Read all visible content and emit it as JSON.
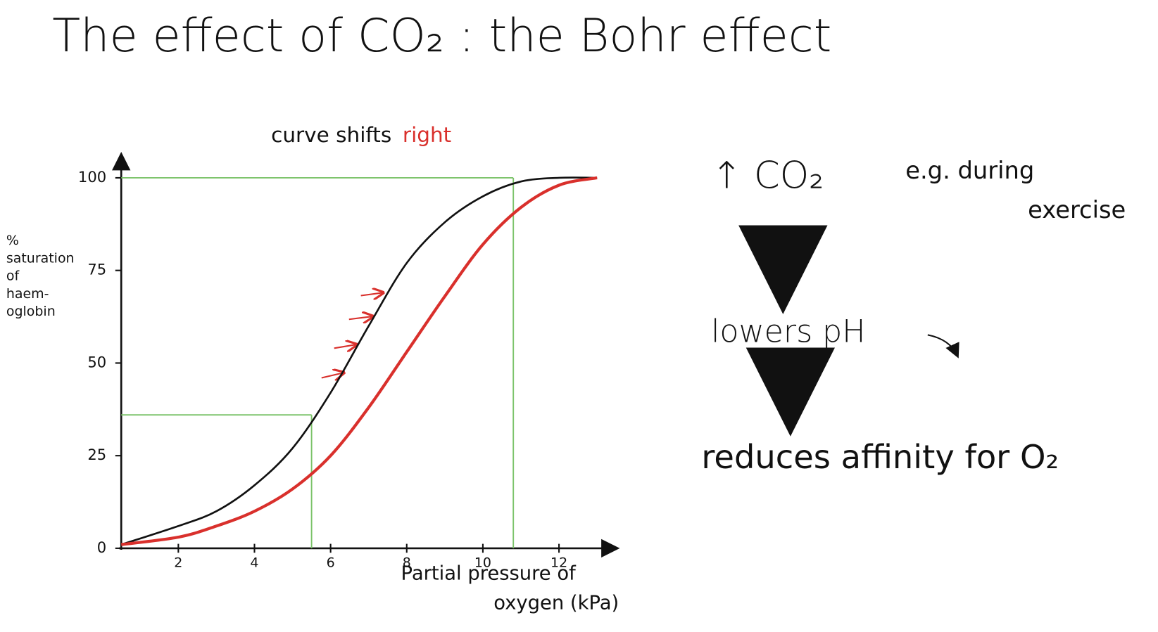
{
  "chart_data": {
    "type": "line",
    "title": "The effect of CO₂ : the Bohr effect",
    "subtitle": "curve shifts",
    "subtitle_highlight": "right",
    "y_label": [
      "%",
      "saturation",
      "of",
      "haem-",
      "oglobin"
    ],
    "x_label": [
      "Partial pressure of",
      "oxygen (kPa)"
    ],
    "x": [
      0.5,
      2,
      3,
      4,
      5,
      6,
      7,
      8,
      9,
      10,
      11,
      12,
      13
    ],
    "series": [
      {
        "color": "#111111",
        "values": [
          1,
          6,
          10,
          17,
          27,
          42,
          60,
          77,
          88,
          95,
          99,
          100,
          100
        ]
      },
      {
        "color": "#d9302c",
        "values": [
          1,
          3,
          6,
          10,
          16,
          25,
          38,
          53,
          68,
          82,
          92,
          98,
          100
        ]
      }
    ],
    "guides": [
      {
        "x": 5.5,
        "y": 36
      },
      {
        "x": 10.8,
        "y": 100
      }
    ],
    "guide_color": "#7cc36a",
    "xlim": [
      0.5,
      13.5
    ],
    "ylim": [
      0,
      106
    ],
    "xticks": [
      2,
      4,
      6,
      8,
      10,
      12
    ],
    "yticks": [
      0,
      25,
      50,
      75,
      100
    ],
    "annotations": {
      "cause": "↑ CO₂",
      "example": [
        "e.g. during",
        "exercise"
      ],
      "step": "lowers pH",
      "result": "reduces affinity for O₂"
    },
    "highlight_color": "#d9302c"
  }
}
